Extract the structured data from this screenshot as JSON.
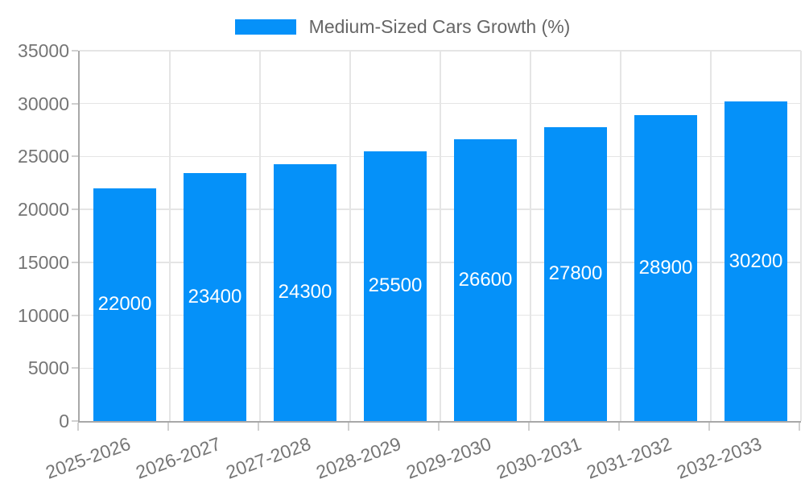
{
  "chart_data": {
    "type": "bar",
    "title": "Medium-Sized Cars Growth (%)",
    "categories": [
      "2025-2026",
      "2026-2027",
      "2027-2028",
      "2028-2029",
      "2029-2030",
      "2030-2031",
      "2031-2032",
      "2032-2033"
    ],
    "values": [
      22000,
      23400,
      24300,
      25500,
      26600,
      27800,
      28900,
      30200
    ],
    "bar_value_labels": [
      "22000",
      "23400",
      "24300",
      "25500",
      "26600",
      "27800",
      "28900",
      "30200"
    ],
    "xlabel": "",
    "ylabel": "",
    "ylim": [
      0,
      35000
    ],
    "ytick_step": 5000,
    "ytick_labels": [
      "0",
      "5000",
      "10000",
      "15000",
      "20000",
      "25000",
      "30000",
      "35000"
    ],
    "grid": true,
    "legend_position": "top",
    "bar_labels_inside": true,
    "x_label_rotation_deg": -20
  },
  "colors": {
    "bar_fill": "#0591f9",
    "bar_value_text": "#ffffff",
    "legend_text": "#666666",
    "axis_text": "#757575",
    "gridline": "#e5e5e5",
    "axis_line": "#a8a8a8",
    "tick_mark": "#cfcfcf",
    "background": "#ffffff"
  }
}
